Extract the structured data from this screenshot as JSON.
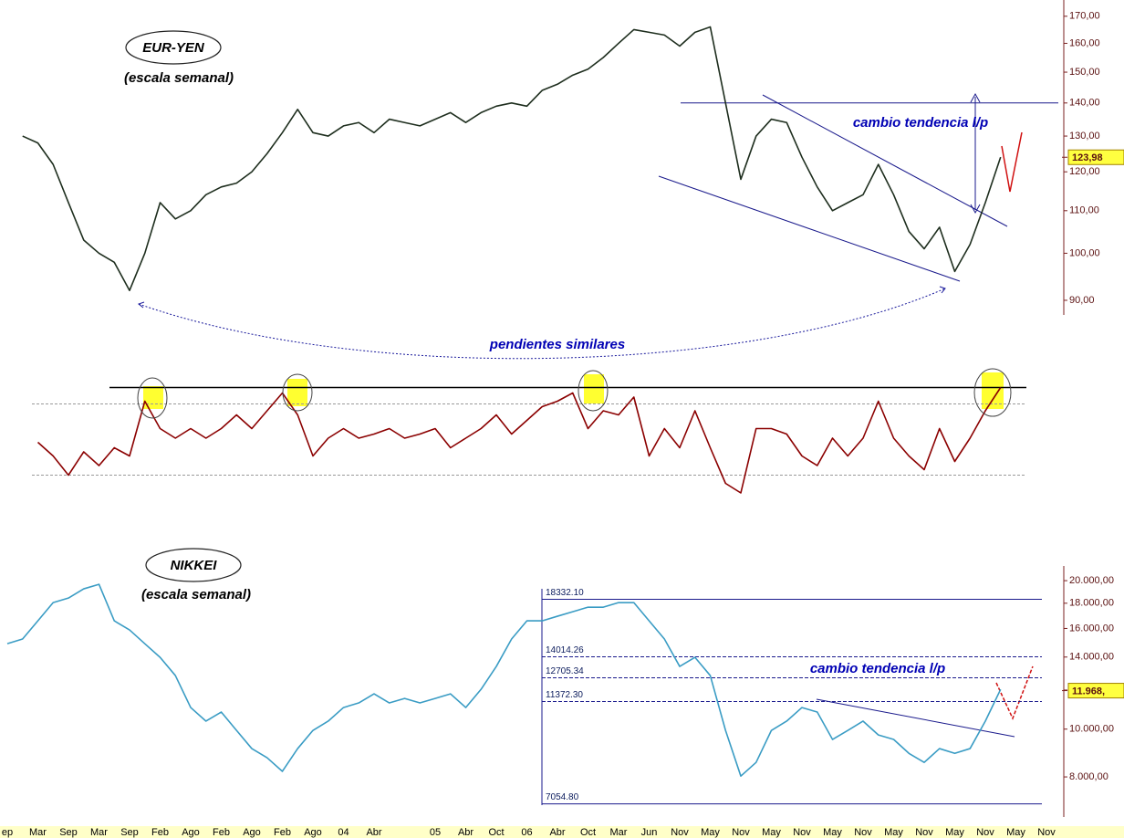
{
  "chart_data": [
    {
      "type": "line",
      "title": "EUR-YEN",
      "subtitle": "(escala semanal)",
      "annotations": [
        "cambio tendencia l/p",
        "pendientes similares"
      ],
      "log_scale": true,
      "ylim": [
        87.1,
        176.3
      ],
      "yticks": [
        {
          "value": 90,
          "label": "90,00"
        },
        {
          "value": 100,
          "label": "100,00"
        },
        {
          "value": 110,
          "label": "110,00"
        },
        {
          "value": 120,
          "label": "120,00"
        },
        {
          "value": 130,
          "label": "130,00"
        },
        {
          "value": 140,
          "label": "140,00"
        },
        {
          "value": 150,
          "label": "150,00"
        },
        {
          "value": 160,
          "label": "160,00"
        },
        {
          "value": 170,
          "label": "170,00"
        }
      ],
      "reference_lines": [
        140
      ],
      "last_value": {
        "value": 123.98,
        "label": "123,98"
      },
      "series": [
        {
          "color": "#1e2e1e",
          "values": [
            null,
            130,
            128,
            122,
            112,
            103,
            100,
            98,
            92,
            100,
            112,
            108,
            110,
            114,
            116,
            117,
            120,
            125,
            131,
            138,
            131,
            130,
            133,
            134,
            131,
            135,
            134,
            133,
            135,
            137,
            134,
            137,
            139,
            140,
            139,
            144,
            146,
            149,
            151,
            155,
            160,
            165,
            164,
            163,
            159,
            164,
            166,
            140,
            118,
            130,
            135,
            134,
            124,
            116,
            110,
            112,
            114,
            122,
            114,
            105,
            101,
            106,
            96,
            102,
            112,
            124,
            null,
            null,
            null
          ]
        }
      ]
    },
    {
      "type": "line",
      "ylim": [
        0,
        100
      ],
      "reference_lines": [
        87,
        75,
        23
      ],
      "series": [
        {
          "color": "#8b0000",
          "values": [
            null,
            null,
            47,
            37,
            23,
            40,
            30,
            43,
            37,
            77,
            57,
            50,
            57,
            50,
            57,
            67,
            57,
            70,
            83,
            67,
            37,
            50,
            57,
            50,
            53,
            57,
            50,
            53,
            57,
            43,
            50,
            57,
            67,
            53,
            63,
            73,
            77,
            83,
            57,
            70,
            67,
            80,
            37,
            57,
            43,
            70,
            43,
            17,
            10,
            57,
            57,
            53,
            37,
            30,
            50,
            37,
            50,
            77,
            50,
            37,
            27,
            57,
            33,
            50,
            70,
            87,
            null,
            null,
            null
          ]
        }
      ]
    },
    {
      "type": "line",
      "title": "NIKKEI",
      "subtitle": "(escala semanal)",
      "annotations": [
        "cambio tendencia l/p"
      ],
      "log_scale": true,
      "ylim": [
        6634,
        21420
      ],
      "yticks": [
        {
          "value": 8000,
          "label": "8.000,00"
        },
        {
          "value": 10000,
          "label": "10.000,00"
        },
        {
          "value": 12000,
          "label": "12.000,00"
        },
        {
          "value": 14000,
          "label": "14.000,00"
        },
        {
          "value": 16000,
          "label": "16.000,00"
        },
        {
          "value": 18000,
          "label": "18.000,00"
        },
        {
          "value": 20000,
          "label": "20.000,00"
        }
      ],
      "reference_lines": [
        {
          "value": 18332.1,
          "label": "18332.10"
        },
        {
          "value": 14014.26,
          "label": "14014.26"
        },
        {
          "value": 12705.34,
          "label": "12705.34"
        },
        {
          "value": 11372.3,
          "label": "11372.30"
        },
        {
          "value": 7054.8,
          "label": "7054.80"
        }
      ],
      "last_value": {
        "value": 11968,
        "label": "11.968,"
      },
      "categories": [
        "ep",
        null,
        "Mar",
        null,
        "Sep",
        null,
        "Mar",
        null,
        "Sep",
        null,
        "Feb",
        null,
        "Ago",
        null,
        "Feb",
        null,
        "Ago",
        null,
        "Feb",
        null,
        "Ago",
        null,
        "04",
        null,
        "Abr",
        null,
        null,
        null,
        "05",
        null,
        "Abr",
        null,
        "Oct",
        null,
        "06",
        null,
        "Abr",
        null,
        "Oct",
        null,
        "Mar",
        null,
        "Jun",
        null,
        "Nov",
        null,
        "May",
        null,
        "Nov",
        null,
        "May",
        null,
        "Nov",
        null,
        "May",
        null,
        "Nov",
        null,
        "May",
        null,
        "Nov",
        null,
        "May",
        null,
        "Nov",
        null,
        "May",
        null,
        "Nov"
      ],
      "series": [
        {
          "color": "#3a9cc4",
          "values": [
            14900,
            15230,
            16580,
            18050,
            18440,
            19250,
            19660,
            16580,
            15890,
            14900,
            13980,
            12840,
            11060,
            10380,
            10830,
            9940,
            9130,
            8750,
            8210,
            9130,
            9940,
            10380,
            11060,
            11300,
            11790,
            11300,
            11540,
            11300,
            11540,
            11790,
            11060,
            12040,
            13400,
            15230,
            16580,
            16580,
            16940,
            17300,
            17670,
            17670,
            18050,
            18050,
            16580,
            15230,
            13400,
            13980,
            12840,
            9940,
            8030,
            8560,
            9940,
            10380,
            11060,
            10830,
            9530,
            9940,
            10380,
            9730,
            9530,
            8930,
            8560,
            9130,
            8930,
            9130,
            10380,
            12040,
            null,
            null,
            null
          ]
        }
      ]
    }
  ]
}
